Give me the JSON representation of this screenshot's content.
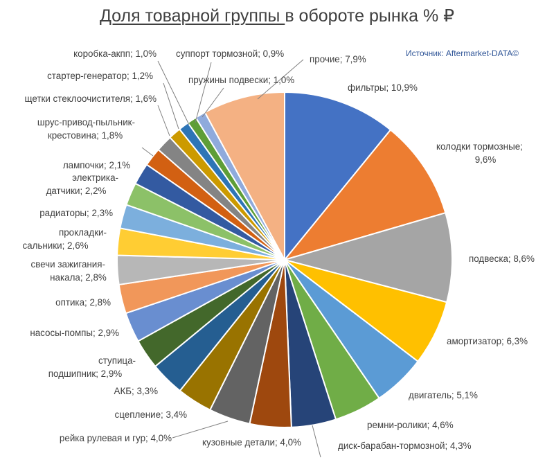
{
  "title": {
    "underlined": "Доля товарной группы ",
    "rest": "в обороте рынка % ₽"
  },
  "source": "Источник: Aftermarket-DATA©",
  "chart_data": {
    "type": "pie",
    "title": "Доля товарной группы в обороте рынка % ₽",
    "slices": [
      {
        "label": "фильтры",
        "value": 10.9,
        "value_text": "10,9%",
        "color": "#4472c4"
      },
      {
        "label": "колодки тормозные",
        "value": 9.6,
        "value_text": "9,6%",
        "color": "#ed7d31"
      },
      {
        "label": "подвеска",
        "value": 8.6,
        "value_text": "8,6%",
        "color": "#a5a5a5"
      },
      {
        "label": "амортизатор",
        "value": 6.3,
        "value_text": "6,3%",
        "color": "#ffc000"
      },
      {
        "label": "двигатель",
        "value": 5.1,
        "value_text": "5,1%",
        "color": "#5b9bd5"
      },
      {
        "label": "ремни-ролики",
        "value": 4.6,
        "value_text": "4,6%",
        "color": "#70ad47"
      },
      {
        "label": "диск-барабан-тормозной",
        "value": 4.3,
        "value_text": "4,3%",
        "color": "#264478"
      },
      {
        "label": "кузовные детали",
        "value": 4.0,
        "value_text": "4,0%",
        "color": "#9e480e"
      },
      {
        "label": "рейка рулевая и гур",
        "value": 4.0,
        "value_text": "4,0%",
        "color": "#636363"
      },
      {
        "label": "сцепление",
        "value": 3.4,
        "value_text": "3,4%",
        "color": "#997300"
      },
      {
        "label": "АКБ",
        "value": 3.3,
        "value_text": "3,3%",
        "color": "#255e91"
      },
      {
        "label": "ступица-подшипник",
        "value": 2.9,
        "value_text": "2,9%",
        "color": "#43682b"
      },
      {
        "label": "насосы-помпы",
        "value": 2.9,
        "value_text": "2,9%",
        "color": "#698ed0"
      },
      {
        "label": "оптика",
        "value": 2.8,
        "value_text": "2,8%",
        "color": "#f1975a"
      },
      {
        "label": "свечи зажигания-накала",
        "value": 2.8,
        "value_text": "2,8%",
        "color": "#b7b7b7"
      },
      {
        "label": "прокладки-сальники",
        "value": 2.6,
        "value_text": "2,6%",
        "color": "#ffcd33"
      },
      {
        "label": "радиаторы",
        "value": 2.3,
        "value_text": "2,3%",
        "color": "#7cafdd"
      },
      {
        "label": "электрика-датчики",
        "value": 2.2,
        "value_text": "2,2%",
        "color": "#8cc168"
      },
      {
        "label": "лампочки",
        "value": 2.1,
        "value_text": "2,1%",
        "color": "#335aa1"
      },
      {
        "label": "шрус-привод-пыльник-крестовина",
        "value": 1.8,
        "value_text": "1,8%",
        "color": "#d26012"
      },
      {
        "label": "щетки стеклоочистителя",
        "value": 1.6,
        "value_text": "1,6%",
        "color": "#848484"
      },
      {
        "label": "стартер-генератор",
        "value": 1.2,
        "value_text": "1,2%",
        "color": "#cc9a00"
      },
      {
        "label": "коробка-акпп",
        "value": 1.0,
        "value_text": "1,0%",
        "color": "#2e75b6"
      },
      {
        "label": "суппорт тормозной",
        "value": 0.9,
        "value_text": "0,9%",
        "color": "#5e9e37"
      },
      {
        "label": "пружины подвески",
        "value": 1.0,
        "value_text": "1,0%",
        "color": "#8faadc"
      },
      {
        "label": "прочие",
        "value": 7.9,
        "value_text": "7,9%",
        "color": "#f4b183"
      }
    ]
  }
}
